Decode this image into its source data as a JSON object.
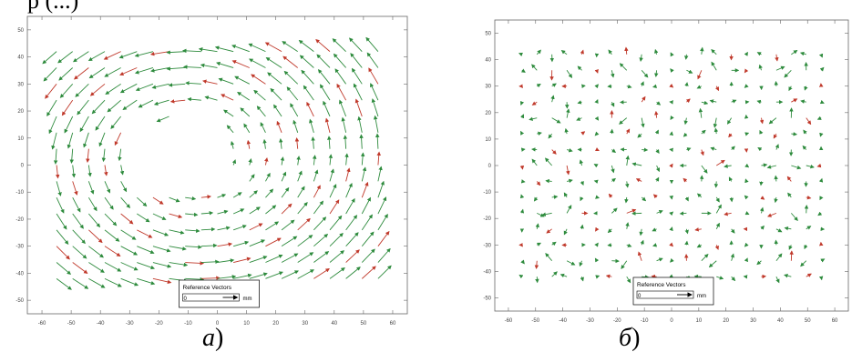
{
  "header_fragment": "р (...)",
  "captions": {
    "a": "а",
    "b": "б",
    "close_paren": ")"
  },
  "chart_data": [
    {
      "type": "quiver",
      "panel": "а",
      "xlim": [
        -65,
        65
      ],
      "ylim": [
        -55,
        55
      ],
      "xticks": [
        -60,
        -50,
        -40,
        -30,
        -20,
        -10,
        0,
        10,
        20,
        30,
        40,
        50,
        60
      ],
      "yticks": [
        50,
        40,
        30,
        20,
        10,
        0,
        -10,
        -20,
        -30,
        -40,
        -50
      ],
      "grid": false,
      "colors": {
        "primary": "#2e8b3d",
        "secondary": "#c0392b",
        "axes": "#666666"
      },
      "legend": {
        "title": "Reference Vectors",
        "value": "0",
        "unit": "mm",
        "placement": "bottom-center"
      },
      "field": "swirl"
    },
    {
      "type": "quiver",
      "panel": "б",
      "xlim": [
        -65,
        65
      ],
      "ylim": [
        -55,
        55
      ],
      "xticks": [
        -60,
        -50,
        -40,
        -30,
        -20,
        -10,
        0,
        10,
        20,
        30,
        40,
        50,
        60
      ],
      "yticks": [
        50,
        40,
        30,
        20,
        10,
        0,
        -10,
        -20,
        -30,
        -40,
        -50
      ],
      "grid": false,
      "colors": {
        "primary": "#2e8b3d",
        "secondary": "#c0392b",
        "axes": "#666666"
      },
      "legend": {
        "title": "Reference Vectors",
        "value": "0",
        "unit": "mm",
        "placement": "bottom-center"
      },
      "field": "sparse"
    }
  ]
}
